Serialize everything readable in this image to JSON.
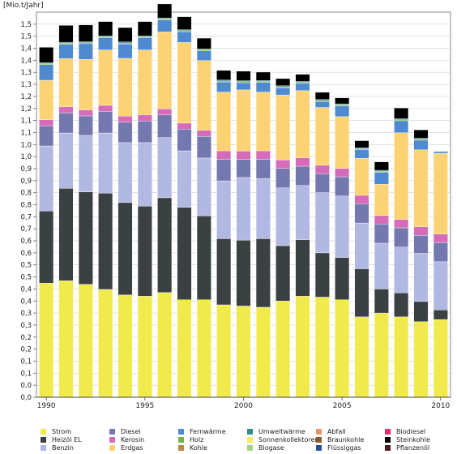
{
  "chart_data": {
    "type": "bar",
    "stacked": true,
    "title": "",
    "ylabel": "[Mio.t/Jahr]",
    "xlabel": "",
    "ylim": [
      0,
      1.6
    ],
    "grid": true,
    "legend_position": "bottom",
    "y_ticks": [
      "0,0",
      "0,0",
      "0,1",
      "0,1",
      "0,2",
      "0,2",
      "0,3",
      "0,3",
      "0,4",
      "0,4",
      "0,5",
      "0,5",
      "0,6",
      "0,6",
      "0,7",
      "0,7",
      "0,8",
      "0,8",
      "0,9",
      "0,9",
      "1,0",
      "1,0",
      "1,1",
      "1,1",
      "1,2",
      "1,2",
      "1,3",
      "1,3",
      "1,4",
      "1,4",
      "1,5",
      "1,5"
    ],
    "x_ticks": [
      "1990",
      "1995",
      "2000",
      "2005",
      "2010"
    ],
    "x": [
      1990,
      1991,
      1992,
      1993,
      1994,
      1995,
      1996,
      1997,
      1998,
      1999,
      2000,
      2001,
      2002,
      2003,
      2004,
      2005,
      2006,
      2007,
      2008,
      2009,
      2010
    ],
    "series": [
      {
        "name": "Strom",
        "color": "#f1ea4d",
        "values": [
          0.474,
          0.484,
          0.469,
          0.448,
          0.425,
          0.42,
          0.435,
          0.405,
          0.405,
          0.384,
          0.379,
          0.374,
          0.4,
          0.42,
          0.416,
          0.405,
          0.334,
          0.35,
          0.334,
          0.314,
          0.323
        ]
      },
      {
        "name": "Heizöl EL",
        "color": "#3b4042",
        "values": [
          0.3,
          0.384,
          0.384,
          0.4,
          0.384,
          0.374,
          0.394,
          0.384,
          0.349,
          0.275,
          0.274,
          0.285,
          0.23,
          0.235,
          0.184,
          0.176,
          0.2,
          0.1,
          0.1,
          0.084,
          0.04
        ]
      },
      {
        "name": "Benzin",
        "color": "#b1b8e2",
        "values": [
          0.27,
          0.23,
          0.235,
          0.25,
          0.249,
          0.264,
          0.25,
          0.235,
          0.24,
          0.24,
          0.26,
          0.25,
          0.24,
          0.225,
          0.25,
          0.255,
          0.19,
          0.19,
          0.19,
          0.2,
          0.2
        ]
      },
      {
        "name": "Diesel",
        "color": "#7378ae",
        "values": [
          0.084,
          0.084,
          0.081,
          0.09,
          0.085,
          0.09,
          0.094,
          0.09,
          0.09,
          0.09,
          0.075,
          0.08,
          0.081,
          0.08,
          0.079,
          0.08,
          0.08,
          0.08,
          0.08,
          0.075,
          0.08
        ]
      },
      {
        "name": "Kerosin",
        "color": "#d56bb9",
        "values": [
          0.025,
          0.025,
          0.025,
          0.025,
          0.025,
          0.025,
          0.025,
          0.025,
          0.025,
          0.035,
          0.035,
          0.035,
          0.035,
          0.035,
          0.035,
          0.035,
          0.035,
          0.035,
          0.035,
          0.035,
          0.035
        ]
      },
      {
        "name": "Erdgas",
        "color": "#fbd374",
        "values": [
          0.164,
          0.2,
          0.21,
          0.23,
          0.24,
          0.27,
          0.32,
          0.335,
          0.29,
          0.244,
          0.254,
          0.244,
          0.27,
          0.279,
          0.24,
          0.215,
          0.154,
          0.13,
          0.36,
          0.32,
          0.335
        ]
      },
      {
        "name": "Fernwärme",
        "color": "#4f8ad0",
        "values": [
          0.065,
          0.06,
          0.065,
          0.05,
          0.06,
          0.05,
          0.05,
          0.045,
          0.04,
          0.042,
          0.03,
          0.04,
          0.03,
          0.03,
          0.025,
          0.045,
          0.035,
          0.05,
          0.05,
          0.04,
          0.005
        ]
      },
      {
        "name": "Holz",
        "color": "#76b44a",
        "values": [
          0.004,
          0.004,
          0.004,
          0.004,
          0.004,
          0.004,
          0.004,
          0.004,
          0.004,
          0.004,
          0.004,
          0.004,
          0.004,
          0.004,
          0.004,
          0.004,
          0.004,
          0.004,
          0.004,
          0.004,
          0.0
        ]
      },
      {
        "name": "Kohle",
        "color": "#b58a4a",
        "values": [
          0.0,
          0.0,
          0.0,
          0.0,
          0.0,
          0.0,
          0.0,
          0.0,
          0.0,
          0.0,
          0.0,
          0.0,
          0.0,
          0.0,
          0.0,
          0.0,
          0.0,
          0.0,
          0.0,
          0.0,
          0.0
        ]
      },
      {
        "name": "Umweltwärme",
        "color": "#2c8e8a",
        "values": [
          0.004,
          0.004,
          0.004,
          0.004,
          0.004,
          0.004,
          0.004,
          0.004,
          0.004,
          0.004,
          0.004,
          0.004,
          0.004,
          0.004,
          0.004,
          0.004,
          0.004,
          0.004,
          0.004,
          0.004,
          0.004
        ]
      },
      {
        "name": "Sonnenkollektoren",
        "color": "#f4ee5e",
        "values": [
          0.0,
          0.0,
          0.0,
          0.0,
          0.0,
          0.0,
          0.0,
          0.0,
          0.0,
          0.0,
          0.0,
          0.0,
          0.0,
          0.0,
          0.0,
          0.0,
          0.0,
          0.0,
          0.0,
          0.0,
          0.0
        ]
      },
      {
        "name": "Biogase",
        "color": "#a8d08d",
        "values": [
          0.0,
          0.0,
          0.0,
          0.0,
          0.0,
          0.0,
          0.0,
          0.0,
          0.0,
          0.0,
          0.0,
          0.0,
          0.0,
          0.0,
          0.0,
          0.0,
          0.0,
          0.0,
          0.0,
          0.0,
          0.0
        ]
      },
      {
        "name": "Abfall",
        "color": "#e8926a",
        "values": [
          0.0,
          0.0,
          0.0,
          0.0,
          0.0,
          0.0,
          0.0,
          0.0,
          0.0,
          0.0,
          0.0,
          0.0,
          0.0,
          0.0,
          0.0,
          0.0,
          0.0,
          0.0,
          0.0,
          0.0,
          0.0
        ]
      },
      {
        "name": "Braunkohle",
        "color": "#8a5a2b",
        "values": [
          0.0,
          0.0,
          0.0,
          0.0,
          0.0,
          0.0,
          0.0,
          0.0,
          0.0,
          0.0,
          0.0,
          0.0,
          0.0,
          0.0,
          0.0,
          0.0,
          0.0,
          0.0,
          0.0,
          0.0,
          0.0
        ]
      },
      {
        "name": "Flüssiggas",
        "color": "#2a4f8e",
        "values": [
          0.0,
          0.0,
          0.0,
          0.0,
          0.0,
          0.0,
          0.0,
          0.0,
          0.0,
          0.0,
          0.0,
          0.0,
          0.0,
          0.0,
          0.0,
          0.0,
          0.0,
          0.0,
          0.0,
          0.0,
          0.0
        ]
      },
      {
        "name": "Pflanzenöl",
        "color": "#4a1c1c",
        "values": [
          0.0,
          0.0,
          0.0,
          0.0,
          0.0,
          0.0,
          0.0,
          0.0,
          0.0,
          0.0,
          0.0,
          0.0,
          0.0,
          0.0,
          0.0,
          0.0,
          0.0,
          0.0,
          0.0,
          0.0,
          0.0
        ]
      },
      {
        "name": "Biodiesel",
        "color": "#d8336b",
        "values": [
          0.0,
          0.0,
          0.0,
          0.0,
          0.0,
          0.0,
          0.0,
          0.0,
          0.0,
          0.0,
          0.0,
          0.0,
          0.0,
          0.0,
          0.0,
          0.0,
          0.0,
          0.0,
          0.0,
          0.0,
          0.0
        ]
      },
      {
        "name": "Steinkohle",
        "color": "#000000",
        "values": [
          0.064,
          0.07,
          0.07,
          0.06,
          0.06,
          0.06,
          0.058,
          0.054,
          0.045,
          0.04,
          0.04,
          0.035,
          0.03,
          0.03,
          0.03,
          0.025,
          0.03,
          0.035,
          0.045,
          0.035,
          0.0
        ]
      }
    ]
  },
  "legend_order": [
    "Strom",
    "Heizöl EL",
    "Benzin",
    "Diesel",
    "Kerosin",
    "Erdgas",
    "Fernwärme",
    "Holz",
    "Kohle",
    "Umweltwärme",
    "Sonnenkollektoren",
    "Biogase",
    "Abfall",
    "Braunkohle",
    "Flüssiggas",
    "Biodiesel",
    "Steinkohle",
    "Pflanzenöl"
  ]
}
